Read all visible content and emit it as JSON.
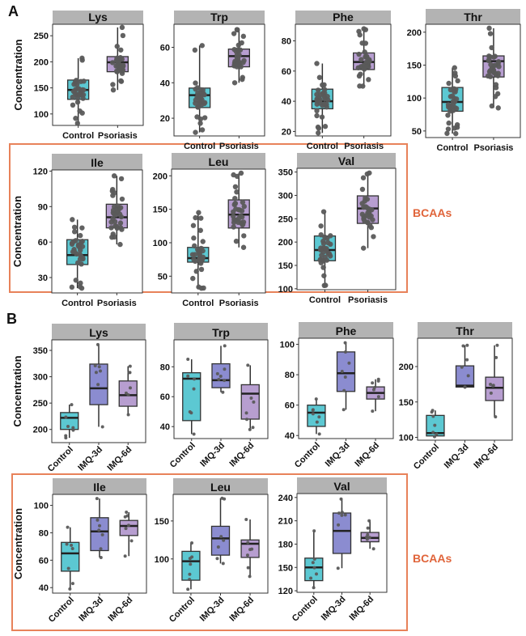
{
  "labels": {
    "panel_a": "A",
    "panel_b": "B",
    "bcaa": "BCAAs",
    "ylabel": "Concentration"
  },
  "colors": {
    "control": "#5cc8d2",
    "psoriasis": "#b79ed0",
    "imq3d": "#8b8cd0",
    "imq6d": "#b79ed0",
    "strip": "#b3b3b3",
    "point": "#5a5a5a",
    "bcaa_border": "#e8825a",
    "bcaa_text": "#e0643a"
  },
  "chart_data": [
    {
      "id": "A-Lys",
      "type": "box",
      "title": "Lys",
      "categories": [
        "Control",
        "Psoriasis"
      ],
      "ylabel": "Concentration",
      "ylim": [
        78,
        272
      ],
      "yticks": [
        100,
        150,
        200,
        250
      ],
      "boxes": [
        {
          "q1": 128,
          "median": 146,
          "q3": 165,
          "min": 82,
          "max": 207
        },
        {
          "q1": 181,
          "median": 199,
          "q3": 210,
          "min": 146,
          "max": 266
        }
      ]
    },
    {
      "id": "A-Trp",
      "type": "box",
      "title": "Trp",
      "categories": [
        "Control",
        "Psoriasis"
      ],
      "ylabel": "",
      "ylim": [
        10,
        73
      ],
      "yticks": [
        20,
        40,
        60
      ],
      "boxes": [
        {
          "q1": 26,
          "median": 33,
          "q3": 37,
          "min": 12,
          "max": 61
        },
        {
          "q1": 49,
          "median": 55,
          "q3": 59,
          "min": 40,
          "max": 70
        }
      ]
    },
    {
      "id": "A-Phe",
      "type": "box",
      "title": "Phe",
      "categories": [
        "Control",
        "Psoriasis"
      ],
      "ylabel": "",
      "ylim": [
        17,
        91
      ],
      "yticks": [
        20,
        40,
        60,
        80
      ],
      "boxes": [
        {
          "q1": 35,
          "median": 40,
          "q3": 48,
          "min": 19,
          "max": 65
        },
        {
          "q1": 61,
          "median": 66,
          "q3": 72,
          "min": 50,
          "max": 88
        }
      ]
    },
    {
      "id": "A-Thr",
      "type": "box",
      "title": "Thr",
      "categories": [
        "Control",
        "Psoriasis"
      ],
      "ylabel": "",
      "ylim": [
        40,
        212
      ],
      "yticks": [
        50,
        100,
        150,
        200
      ],
      "boxes": [
        {
          "q1": 80,
          "median": 94,
          "q3": 116,
          "min": 46,
          "max": 146
        },
        {
          "q1": 132,
          "median": 156,
          "q3": 164,
          "min": 85,
          "max": 206
        }
      ]
    },
    {
      "id": "A-Ile",
      "type": "box",
      "title": "Ile",
      "categories": [
        "Control",
        "Psoriasis"
      ],
      "ylabel": "Concentration",
      "ylim": [
        17,
        121
      ],
      "yticks": [
        30,
        60,
        90,
        120
      ],
      "boxes": [
        {
          "q1": 41,
          "median": 49,
          "q3": 62,
          "min": 21,
          "max": 79
        },
        {
          "q1": 72,
          "median": 81,
          "q3": 92,
          "min": 58,
          "max": 116
        }
      ]
    },
    {
      "id": "A-Leu",
      "type": "box",
      "title": "Leu",
      "categories": [
        "Control",
        "Psoriasis"
      ],
      "ylabel": "",
      "ylim": [
        25,
        210
      ],
      "yticks": [
        50,
        100,
        150,
        200
      ],
      "boxes": [
        {
          "q1": 71,
          "median": 77,
          "q3": 93,
          "min": 32,
          "max": 145
        },
        {
          "q1": 122,
          "median": 142,
          "q3": 164,
          "min": 93,
          "max": 204
        }
      ]
    },
    {
      "id": "A-Val",
      "type": "box",
      "title": "Val",
      "categories": [
        "Control",
        "Psoriasis"
      ],
      "ylabel": "",
      "ylim": [
        98,
        358
      ],
      "yticks": [
        100,
        150,
        200,
        250,
        300,
        350
      ],
      "boxes": [
        {
          "q1": 160,
          "median": 183,
          "q3": 213,
          "min": 107,
          "max": 265
        },
        {
          "q1": 240,
          "median": 272,
          "q3": 299,
          "min": 187,
          "max": 348
        }
      ]
    },
    {
      "id": "B-Lys",
      "type": "box",
      "title": "Lys",
      "categories": [
        "Control",
        "IMQ-3d",
        "IMQ-6d"
      ],
      "ylabel": "Concentration",
      "ylim": [
        175,
        370
      ],
      "yticks": [
        200,
        250,
        300,
        350
      ],
      "boxes": [
        {
          "q1": 200,
          "median": 222,
          "q3": 232,
          "min": 184,
          "max": 247
        },
        {
          "q1": 247,
          "median": 278,
          "q3": 324,
          "min": 205,
          "max": 361
        },
        {
          "q1": 244,
          "median": 265,
          "q3": 292,
          "min": 228,
          "max": 320
        }
      ]
    },
    {
      "id": "B-Trp",
      "type": "box",
      "title": "Trp",
      "categories": [
        "Control",
        "IMQ-3d",
        "IMQ-6d"
      ],
      "ylabel": "",
      "ylim": [
        32,
        98
      ],
      "yticks": [
        40,
        60,
        80
      ],
      "boxes": [
        {
          "q1": 44,
          "median": 72,
          "q3": 76,
          "min": 35,
          "max": 85
        },
        {
          "q1": 66,
          "median": 71,
          "q3": 82,
          "min": 63,
          "max": 94
        },
        {
          "q1": 45,
          "median": 62,
          "q3": 68,
          "min": 38,
          "max": 81
        }
      ]
    },
    {
      "id": "B-Phe",
      "type": "box",
      "title": "Phe",
      "categories": [
        "Control",
        "IMQ-3d",
        "IMQ-6d"
      ],
      "ylabel": "",
      "ylim": [
        38,
        104
      ],
      "yticks": [
        40,
        60,
        80,
        100
      ],
      "boxes": [
        {
          "q1": 46,
          "median": 55,
          "q3": 60,
          "min": 41,
          "max": 64
        },
        {
          "q1": 69,
          "median": 81,
          "q3": 95,
          "min": 57,
          "max": 101
        },
        {
          "q1": 64,
          "median": 68,
          "q3": 72,
          "min": 56,
          "max": 77
        }
      ]
    },
    {
      "id": "B-Thr",
      "type": "box",
      "title": "Thr",
      "categories": [
        "Control",
        "IMQ-3d",
        "IMQ-6d"
      ],
      "ylabel": "",
      "ylim": [
        96,
        240
      ],
      "yticks": [
        100,
        150,
        200
      ],
      "boxes": [
        {
          "q1": 102,
          "median": 106,
          "q3": 131,
          "min": 101,
          "max": 138
        },
        {
          "q1": 171,
          "median": 173,
          "q3": 201,
          "min": 171,
          "max": 230
        },
        {
          "q1": 152,
          "median": 170,
          "q3": 185,
          "min": 129,
          "max": 230
        }
      ]
    },
    {
      "id": "B-Ile",
      "type": "box",
      "title": "Ile",
      "categories": [
        "Control",
        "IMQ-3d",
        "IMQ-6d"
      ],
      "ylabel": "Concentration",
      "ylim": [
        36,
        108
      ],
      "yticks": [
        40,
        60,
        80,
        100
      ],
      "boxes": [
        {
          "q1": 52,
          "median": 65,
          "q3": 73,
          "min": 39,
          "max": 84
        },
        {
          "q1": 67,
          "median": 81,
          "q3": 91,
          "min": 62,
          "max": 105
        },
        {
          "q1": 78,
          "median": 85,
          "q3": 89,
          "min": 63,
          "max": 95
        }
      ]
    },
    {
      "id": "B-Leu",
      "type": "box",
      "title": "Leu",
      "categories": [
        "Control",
        "IMQ-3d",
        "IMQ-6d"
      ],
      "ylabel": "",
      "ylim": [
        55,
        185
      ],
      "yticks": [
        100,
        150
      ],
      "boxes": [
        {
          "q1": 72,
          "median": 97,
          "q3": 110,
          "min": 60,
          "max": 121
        },
        {
          "q1": 105,
          "median": 127,
          "q3": 143,
          "min": 94,
          "max": 180
        },
        {
          "q1": 102,
          "median": 120,
          "q3": 125,
          "min": 77,
          "max": 152
        }
      ]
    },
    {
      "id": "B-Val",
      "type": "box",
      "title": "Val",
      "categories": [
        "Control",
        "IMQ-3d",
        "IMQ-6d"
      ],
      "ylabel": "",
      "ylim": [
        118,
        245
      ],
      "yticks": [
        120,
        150,
        180,
        210,
        240
      ],
      "boxes": [
        {
          "q1": 133,
          "median": 150,
          "q3": 162,
          "min": 124,
          "max": 197
        },
        {
          "q1": 168,
          "median": 197,
          "q3": 220,
          "min": 149,
          "max": 238
        },
        {
          "q1": 183,
          "median": 188,
          "q3": 195,
          "min": 174,
          "max": 210
        }
      ]
    }
  ]
}
